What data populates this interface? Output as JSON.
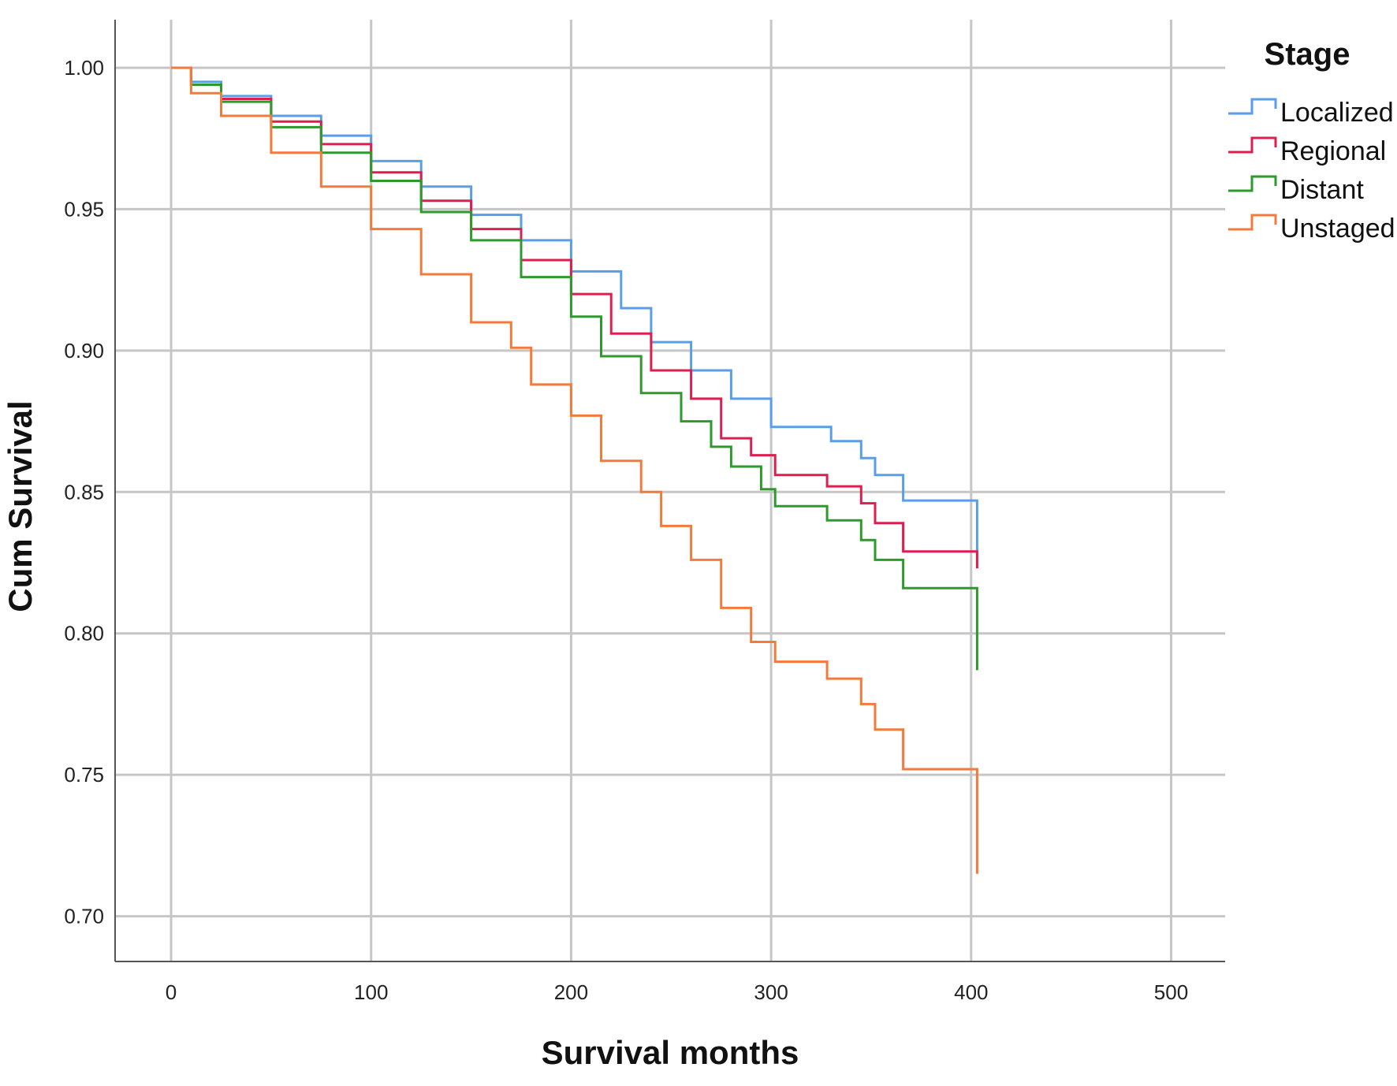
{
  "chart_data": {
    "type": "line",
    "title": "",
    "xlabel": "Survival months",
    "ylabel": "Cum Survival",
    "xlim": [
      -28,
      527
    ],
    "ylim": [
      0.684,
      1.017
    ],
    "x_ticks": [
      0,
      100,
      200,
      300,
      400,
      500
    ],
    "x_tick_labels": [
      "0",
      "100",
      "200",
      "300",
      "400",
      "500"
    ],
    "y_ticks": [
      0.7,
      0.75,
      0.8,
      0.85,
      0.9,
      0.95,
      1.0
    ],
    "y_tick_labels": [
      "0.70",
      "0.75",
      "0.80",
      "0.85",
      "0.90",
      "0.95",
      "1.00"
    ],
    "grid": true,
    "step": true,
    "legend": {
      "title": "Stage",
      "position": "right"
    },
    "series": [
      {
        "name": "Localized",
        "color": "#5b9ee8",
        "points": [
          [
            0,
            1.0
          ],
          [
            10,
            0.995
          ],
          [
            25,
            0.99
          ],
          [
            50,
            0.983
          ],
          [
            75,
            0.976
          ],
          [
            100,
            0.967
          ],
          [
            125,
            0.958
          ],
          [
            150,
            0.948
          ],
          [
            175,
            0.939
          ],
          [
            200,
            0.928
          ],
          [
            225,
            0.915
          ],
          [
            240,
            0.903
          ],
          [
            260,
            0.893
          ],
          [
            280,
            0.883
          ],
          [
            300,
            0.873
          ],
          [
            330,
            0.868
          ],
          [
            345,
            0.862
          ],
          [
            352,
            0.856
          ],
          [
            366,
            0.847
          ],
          [
            403,
            0.847
          ],
          [
            403,
            0.829
          ]
        ]
      },
      {
        "name": "Regional",
        "color": "#dc1f4f",
        "points": [
          [
            0,
            1.0
          ],
          [
            10,
            0.994
          ],
          [
            25,
            0.989
          ],
          [
            50,
            0.981
          ],
          [
            75,
            0.973
          ],
          [
            100,
            0.963
          ],
          [
            125,
            0.953
          ],
          [
            150,
            0.943
          ],
          [
            175,
            0.932
          ],
          [
            200,
            0.92
          ],
          [
            220,
            0.906
          ],
          [
            240,
            0.893
          ],
          [
            260,
            0.883
          ],
          [
            275,
            0.869
          ],
          [
            290,
            0.863
          ],
          [
            302,
            0.856
          ],
          [
            328,
            0.852
          ],
          [
            345,
            0.846
          ],
          [
            352,
            0.839
          ],
          [
            366,
            0.829
          ],
          [
            403,
            0.829
          ],
          [
            403,
            0.823
          ]
        ]
      },
      {
        "name": "Distant",
        "color": "#2e9a2e",
        "points": [
          [
            0,
            1.0
          ],
          [
            10,
            0.994
          ],
          [
            25,
            0.988
          ],
          [
            50,
            0.979
          ],
          [
            75,
            0.97
          ],
          [
            100,
            0.96
          ],
          [
            125,
            0.949
          ],
          [
            150,
            0.939
          ],
          [
            175,
            0.926
          ],
          [
            200,
            0.912
          ],
          [
            215,
            0.898
          ],
          [
            235,
            0.885
          ],
          [
            255,
            0.875
          ],
          [
            270,
            0.866
          ],
          [
            280,
            0.859
          ],
          [
            295,
            0.851
          ],
          [
            302,
            0.845
          ],
          [
            328,
            0.84
          ],
          [
            345,
            0.833
          ],
          [
            352,
            0.826
          ],
          [
            366,
            0.816
          ],
          [
            403,
            0.816
          ],
          [
            403,
            0.787
          ]
        ]
      },
      {
        "name": "Unstaged",
        "color": "#f47a3c",
        "points": [
          [
            0,
            1.0
          ],
          [
            10,
            0.991
          ],
          [
            25,
            0.983
          ],
          [
            50,
            0.97
          ],
          [
            75,
            0.958
          ],
          [
            100,
            0.943
          ],
          [
            125,
            0.927
          ],
          [
            150,
            0.91
          ],
          [
            170,
            0.901
          ],
          [
            180,
            0.888
          ],
          [
            200,
            0.877
          ],
          [
            215,
            0.861
          ],
          [
            235,
            0.85
          ],
          [
            245,
            0.838
          ],
          [
            260,
            0.826
          ],
          [
            275,
            0.809
          ],
          [
            290,
            0.797
          ],
          [
            302,
            0.79
          ],
          [
            328,
            0.784
          ],
          [
            345,
            0.775
          ],
          [
            352,
            0.766
          ],
          [
            366,
            0.752
          ],
          [
            403,
            0.752
          ],
          [
            403,
            0.715
          ]
        ]
      }
    ]
  }
}
